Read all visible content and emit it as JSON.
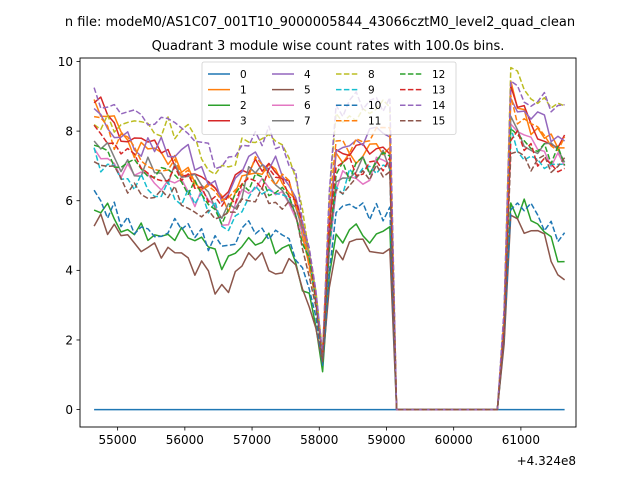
{
  "suptitle": "n file: modeM0/AS1C07_001T10_9000005844_43066cztM0_level2_quad_clean",
  "chart_data": {
    "type": "line",
    "title": "Quadrant 3 module wise count rates with 100.0s bins.",
    "xlabel": "",
    "ylabel": "",
    "x_offset_label": "+4.324e8",
    "xlim": [
      54440,
      61820
    ],
    "ylim": [
      -0.5,
      10.1
    ],
    "xticks": [
      55000,
      56000,
      57000,
      58000,
      59000,
      60000,
      61000
    ],
    "yticks": [
      0,
      2,
      4,
      6,
      8,
      10
    ],
    "grid": false,
    "legend_placement": "top-center",
    "legend_columns": 4,
    "segments": [
      {
        "x_start": 54650,
        "x_end": 59050
      },
      {
        "x_start": 60750,
        "x_end": 61650
      }
    ],
    "gap_range": [
      59150,
      60650
    ],
    "series": [
      {
        "name": "0",
        "color": "#1f77b4",
        "dash": "solid",
        "anchors": [
          [
            54650,
            0
          ],
          [
            61650,
            0
          ]
        ]
      },
      {
        "name": "1",
        "color": "#ff7f0e",
        "dash": "solid",
        "anchors": [
          [
            54650,
            8.8
          ],
          [
            55200,
            7.5
          ],
          [
            56000,
            7.0
          ],
          [
            56600,
            5.8
          ],
          [
            57000,
            7.0
          ],
          [
            57500,
            6.5
          ],
          [
            57700,
            5.6
          ],
          [
            57900,
            4.0
          ],
          [
            58050,
            1.6
          ],
          [
            58200,
            7.0
          ],
          [
            58600,
            7.3
          ],
          [
            59050,
            7.5
          ],
          [
            60750,
            2.5
          ],
          [
            60850,
            9.3
          ],
          [
            61200,
            8.0
          ],
          [
            61650,
            7.6
          ]
        ]
      },
      {
        "name": "2",
        "color": "#2ca02c",
        "dash": "solid",
        "anchors": [
          [
            54650,
            5.8
          ],
          [
            55200,
            5.3
          ],
          [
            56000,
            5.0
          ],
          [
            56600,
            4.3
          ],
          [
            57000,
            4.9
          ],
          [
            57500,
            4.6
          ],
          [
            57700,
            4.0
          ],
          [
            57900,
            3.0
          ],
          [
            58050,
            1.1
          ],
          [
            58200,
            4.9
          ],
          [
            58600,
            5.0
          ],
          [
            59050,
            5.0
          ],
          [
            60750,
            2.0
          ],
          [
            60850,
            5.8
          ],
          [
            61200,
            5.7
          ],
          [
            61650,
            4.0
          ]
        ]
      },
      {
        "name": "3",
        "color": "#d62728",
        "dash": "solid",
        "anchors": [
          [
            54650,
            9.0
          ],
          [
            55200,
            7.7
          ],
          [
            56000,
            7.0
          ],
          [
            56600,
            6.0
          ],
          [
            57000,
            7.2
          ],
          [
            57500,
            6.7
          ],
          [
            57700,
            5.7
          ],
          [
            57900,
            4.1
          ],
          [
            58050,
            1.5
          ],
          [
            58200,
            7.1
          ],
          [
            58600,
            7.4
          ],
          [
            59050,
            7.6
          ],
          [
            60750,
            2.5
          ],
          [
            60850,
            9.4
          ],
          [
            61200,
            8.1
          ],
          [
            61650,
            7.7
          ]
        ]
      },
      {
        "name": "4",
        "color": "#9467bd",
        "dash": "solid",
        "anchors": [
          [
            54650,
            8.5
          ],
          [
            55200,
            7.6
          ],
          [
            56000,
            7.4
          ],
          [
            56600,
            6.0
          ],
          [
            57000,
            7.3
          ],
          [
            57500,
            7.0
          ],
          [
            57700,
            5.8
          ],
          [
            57900,
            4.2
          ],
          [
            58050,
            1.5
          ],
          [
            58200,
            7.5
          ],
          [
            58600,
            7.7
          ],
          [
            59050,
            7.9
          ],
          [
            60750,
            2.6
          ],
          [
            60850,
            9.1
          ],
          [
            61200,
            8.3
          ],
          [
            61650,
            7.8
          ]
        ]
      },
      {
        "name": "5",
        "color": "#8c564b",
        "dash": "solid",
        "anchors": [
          [
            54650,
            5.5
          ],
          [
            55200,
            4.6
          ],
          [
            56000,
            4.4
          ],
          [
            56600,
            3.4
          ],
          [
            57000,
            4.3
          ],
          [
            57500,
            4.1
          ],
          [
            57700,
            3.9
          ],
          [
            57900,
            2.8
          ],
          [
            58050,
            1.3
          ],
          [
            58200,
            4.4
          ],
          [
            58600,
            4.7
          ],
          [
            59050,
            4.8
          ],
          [
            60750,
            1.9
          ],
          [
            60850,
            5.6
          ],
          [
            61200,
            5.2
          ],
          [
            61650,
            3.9
          ]
        ]
      },
      {
        "name": "6",
        "color": "#e377c2",
        "dash": "solid",
        "anchors": [
          [
            54650,
            7.3
          ],
          [
            55200,
            6.8
          ],
          [
            56000,
            6.4
          ],
          [
            56600,
            5.4
          ],
          [
            57000,
            6.4
          ],
          [
            57500,
            6.1
          ],
          [
            57700,
            5.3
          ],
          [
            57900,
            3.9
          ],
          [
            58050,
            1.5
          ],
          [
            58200,
            6.5
          ],
          [
            58600,
            6.8
          ],
          [
            59050,
            7.0
          ],
          [
            60750,
            2.3
          ],
          [
            60850,
            8.0
          ],
          [
            61200,
            7.4
          ],
          [
            61650,
            7.1
          ]
        ]
      },
      {
        "name": "7",
        "color": "#7f7f7f",
        "dash": "solid",
        "anchors": [
          [
            54650,
            7.6
          ],
          [
            55200,
            7.0
          ],
          [
            56000,
            6.7
          ],
          [
            56600,
            5.6
          ],
          [
            57000,
            6.9
          ],
          [
            57500,
            6.5
          ],
          [
            57700,
            5.5
          ],
          [
            57900,
            4.0
          ],
          [
            58050,
            1.5
          ],
          [
            58200,
            6.8
          ],
          [
            58600,
            7.0
          ],
          [
            59050,
            7.2
          ],
          [
            60750,
            2.4
          ],
          [
            60850,
            8.3
          ],
          [
            61200,
            7.6
          ],
          [
            61650,
            7.3
          ]
        ]
      },
      {
        "name": "8",
        "color": "#bcbd22",
        "dash": "dashed",
        "anchors": [
          [
            54650,
            8.2
          ],
          [
            55200,
            8.4
          ],
          [
            56000,
            8.0
          ],
          [
            56600,
            6.6
          ],
          [
            57000,
            8.0
          ],
          [
            57500,
            7.6
          ],
          [
            57700,
            6.2
          ],
          [
            57900,
            4.3
          ],
          [
            58050,
            1.6
          ],
          [
            58200,
            8.2
          ],
          [
            58600,
            8.6
          ],
          [
            59050,
            8.7
          ],
          [
            60750,
            2.8
          ],
          [
            60850,
            9.6
          ],
          [
            61200,
            8.9
          ],
          [
            61650,
            8.4
          ]
        ]
      },
      {
        "name": "9",
        "color": "#17becf",
        "dash": "dashed",
        "anchors": [
          [
            54650,
            7.2
          ],
          [
            55200,
            6.6
          ],
          [
            56000,
            6.2
          ],
          [
            56400,
            5.8
          ],
          [
            56600,
            5.2
          ],
          [
            57000,
            6.3
          ],
          [
            57500,
            6.0
          ],
          [
            57700,
            5.2
          ],
          [
            57900,
            3.9
          ],
          [
            58050,
            1.5
          ],
          [
            58200,
            6.4
          ],
          [
            58600,
            6.7
          ],
          [
            59050,
            6.9
          ],
          [
            60750,
            2.3
          ],
          [
            60850,
            7.8
          ],
          [
            61200,
            7.3
          ],
          [
            61650,
            7.0
          ]
        ]
      },
      {
        "name": "10",
        "color": "#1f77b4",
        "dash": "dashed",
        "anchors": [
          [
            54650,
            6.1
          ],
          [
            55200,
            5.4
          ],
          [
            56000,
            5.1
          ],
          [
            56600,
            4.7
          ],
          [
            57000,
            5.2
          ],
          [
            57500,
            5.0
          ],
          [
            57700,
            4.5
          ],
          [
            57900,
            3.3
          ],
          [
            58050,
            1.3
          ],
          [
            58200,
            5.6
          ],
          [
            58600,
            5.7
          ],
          [
            59050,
            5.7
          ],
          [
            60750,
            2.1
          ],
          [
            60850,
            6.0
          ],
          [
            61200,
            5.6
          ],
          [
            61650,
            4.8
          ]
        ]
      },
      {
        "name": "11",
        "color": "#ff7f0e",
        "dash": "dashed",
        "anchors": [
          [
            54650,
            8.3
          ],
          [
            55200,
            7.4
          ],
          [
            56000,
            6.8
          ],
          [
            56600,
            6.0
          ],
          [
            57000,
            7.0
          ],
          [
            57500,
            6.6
          ],
          [
            57700,
            5.6
          ],
          [
            57900,
            4.0
          ],
          [
            58050,
            1.6
          ],
          [
            58200,
            7.4
          ],
          [
            58600,
            7.7
          ],
          [
            59050,
            7.8
          ],
          [
            60750,
            2.6
          ],
          [
            60850,
            8.7
          ],
          [
            61200,
            7.9
          ],
          [
            61650,
            7.5
          ]
        ]
      },
      {
        "name": "12",
        "color": "#2ca02c",
        "dash": "dashed",
        "anchors": [
          [
            54650,
            7.5
          ],
          [
            55200,
            6.9
          ],
          [
            56000,
            6.5
          ],
          [
            56600,
            5.5
          ],
          [
            57000,
            6.6
          ],
          [
            57500,
            6.3
          ],
          [
            57700,
            5.4
          ],
          [
            57900,
            4.0
          ],
          [
            58050,
            1.4
          ],
          [
            58200,
            6.7
          ],
          [
            58600,
            7.0
          ],
          [
            59050,
            7.1
          ],
          [
            60750,
            2.4
          ],
          [
            60850,
            8.2
          ],
          [
            61200,
            7.5
          ],
          [
            61650,
            7.2
          ]
        ]
      },
      {
        "name": "13",
        "color": "#d62728",
        "dash": "dashed",
        "anchors": [
          [
            54650,
            7.9
          ],
          [
            55200,
            7.1
          ],
          [
            56000,
            6.7
          ],
          [
            56600,
            5.7
          ],
          [
            57000,
            6.8
          ],
          [
            57500,
            6.4
          ],
          [
            57700,
            5.5
          ],
          [
            57900,
            4.0
          ],
          [
            58050,
            1.5
          ],
          [
            58200,
            6.8
          ],
          [
            58600,
            7.1
          ],
          [
            59050,
            7.2
          ],
          [
            60750,
            2.4
          ],
          [
            60850,
            8.0
          ],
          [
            61200,
            7.3
          ],
          [
            61650,
            7.0
          ]
        ]
      },
      {
        "name": "14",
        "color": "#9467bd",
        "dash": "dashed",
        "anchors": [
          [
            54650,
            9.1
          ],
          [
            55200,
            8.5
          ],
          [
            56000,
            8.2
          ],
          [
            56600,
            6.8
          ],
          [
            57000,
            8.0
          ],
          [
            57500,
            7.7
          ],
          [
            57700,
            6.2
          ],
          [
            57900,
            4.3
          ],
          [
            58050,
            1.6
          ],
          [
            58200,
            8.5
          ],
          [
            58600,
            8.9
          ],
          [
            59050,
            8.9
          ],
          [
            60750,
            2.9
          ],
          [
            60850,
            9.2
          ],
          [
            61200,
            9.0
          ],
          [
            61650,
            8.6
          ]
        ]
      },
      {
        "name": "15",
        "color": "#8c564b",
        "dash": "dashed",
        "anchors": [
          [
            54650,
            7.0
          ],
          [
            55200,
            6.5
          ],
          [
            56000,
            6.2
          ],
          [
            56600,
            5.3
          ],
          [
            57000,
            6.3
          ],
          [
            57500,
            6.0
          ],
          [
            57700,
            5.1
          ],
          [
            57900,
            3.8
          ],
          [
            58050,
            1.4
          ],
          [
            58200,
            6.3
          ],
          [
            58600,
            6.6
          ],
          [
            59050,
            6.8
          ],
          [
            60750,
            2.2
          ],
          [
            60850,
            7.6
          ],
          [
            61200,
            7.1
          ],
          [
            61650,
            6.9
          ]
        ]
      }
    ]
  }
}
